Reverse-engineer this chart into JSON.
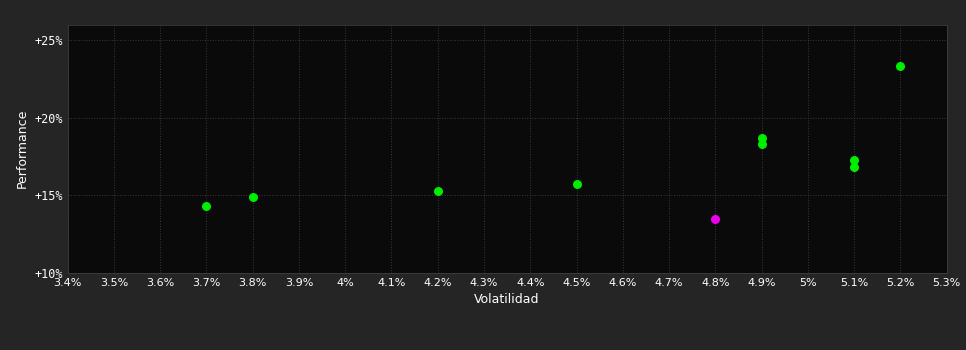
{
  "background_color": "#252525",
  "plot_bg_color": "#0a0a0a",
  "grid_color": "#3a3a3a",
  "text_color": "#ffffff",
  "xlabel": "Volatilidad",
  "ylabel": "Performance",
  "xlim": [
    0.034,
    0.053
  ],
  "ylim": [
    0.1,
    0.26
  ],
  "xticks": [
    0.034,
    0.035,
    0.036,
    0.037,
    0.038,
    0.039,
    0.04,
    0.041,
    0.042,
    0.043,
    0.044,
    0.045,
    0.046,
    0.047,
    0.048,
    0.049,
    0.05,
    0.051,
    0.052,
    0.053
  ],
  "yticks": [
    0.1,
    0.15,
    0.2,
    0.25
  ],
  "ytick_labels": [
    "+10%",
    "+15%",
    "+20%",
    "+25%"
  ],
  "green_points": [
    [
      0.037,
      0.143
    ],
    [
      0.038,
      0.149
    ],
    [
      0.042,
      0.153
    ],
    [
      0.045,
      0.157
    ],
    [
      0.049,
      0.187
    ],
    [
      0.049,
      0.183
    ],
    [
      0.051,
      0.173
    ],
    [
      0.051,
      0.168
    ],
    [
      0.052,
      0.233
    ]
  ],
  "magenta_points": [
    [
      0.048,
      0.135
    ]
  ],
  "point_size": 30,
  "green_color": "#00ee00",
  "magenta_color": "#ee00ee"
}
